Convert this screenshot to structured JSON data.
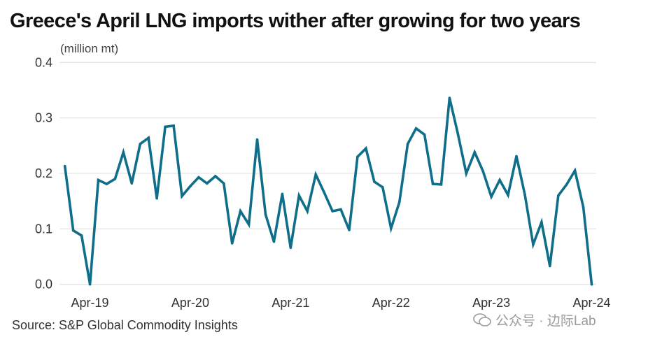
{
  "chart_data": {
    "type": "line",
    "title": "Greece's April LNG imports wither after growing for two years",
    "ylabel": "(million mt)",
    "ylim": [
      0,
      0.4
    ],
    "yticks": [
      "0.0",
      "0.1",
      "0.2",
      "0.3",
      "0.4"
    ],
    "xtick_labels": [
      "Apr-19",
      "Apr-20",
      "Apr-21",
      "Apr-22",
      "Apr-23",
      "Apr-24"
    ],
    "grid": "horizontal",
    "line_color": "#0f6e89",
    "x": [
      "Jan-19",
      "Feb-19",
      "Mar-19",
      "Apr-19",
      "May-19",
      "Jun-19",
      "Jul-19",
      "Aug-19",
      "Sep-19",
      "Oct-19",
      "Nov-19",
      "Dec-19",
      "Jan-20",
      "Feb-20",
      "Mar-20",
      "Apr-20",
      "May-20",
      "Jun-20",
      "Jul-20",
      "Aug-20",
      "Sep-20",
      "Oct-20",
      "Nov-20",
      "Dec-20",
      "Jan-21",
      "Feb-21",
      "Mar-21",
      "Apr-21",
      "May-21",
      "Jun-21",
      "Jul-21",
      "Aug-21",
      "Sep-21",
      "Oct-21",
      "Nov-21",
      "Dec-21",
      "Jan-22",
      "Feb-22",
      "Mar-22",
      "Apr-22",
      "May-22",
      "Jun-22",
      "Jul-22",
      "Aug-22",
      "Sep-22",
      "Oct-22",
      "Nov-22",
      "Dec-22",
      "Jan-23",
      "Feb-23",
      "Mar-23",
      "Apr-23",
      "May-23",
      "Jun-23",
      "Jul-23",
      "Aug-23",
      "Sep-23",
      "Oct-23",
      "Nov-23",
      "Dec-23",
      "Jan-24",
      "Feb-24",
      "Mar-24",
      "Apr-24"
    ],
    "values": [
      0.213,
      0.097,
      0.088,
      0.0,
      0.188,
      0.181,
      0.19,
      0.238,
      0.182,
      0.253,
      0.264,
      0.155,
      0.284,
      0.286,
      0.159,
      0.177,
      0.193,
      0.182,
      0.195,
      0.182,
      0.074,
      0.132,
      0.108,
      0.261,
      0.126,
      0.077,
      0.163,
      0.066,
      0.16,
      0.132,
      0.198,
      0.166,
      0.132,
      0.135,
      0.098,
      0.23,
      0.245,
      0.185,
      0.175,
      0.101,
      0.148,
      0.253,
      0.281,
      0.27,
      0.181,
      0.18,
      0.336,
      0.271,
      0.2,
      0.238,
      0.204,
      0.158,
      0.188,
      0.161,
      0.231,
      0.162,
      0.072,
      0.112,
      0.033,
      0.16,
      0.18,
      0.205,
      0.139,
      0.0
    ]
  },
  "source": "Source: S&P Global Commodity Insights",
  "watermark": "公众号 · 边际Lab"
}
